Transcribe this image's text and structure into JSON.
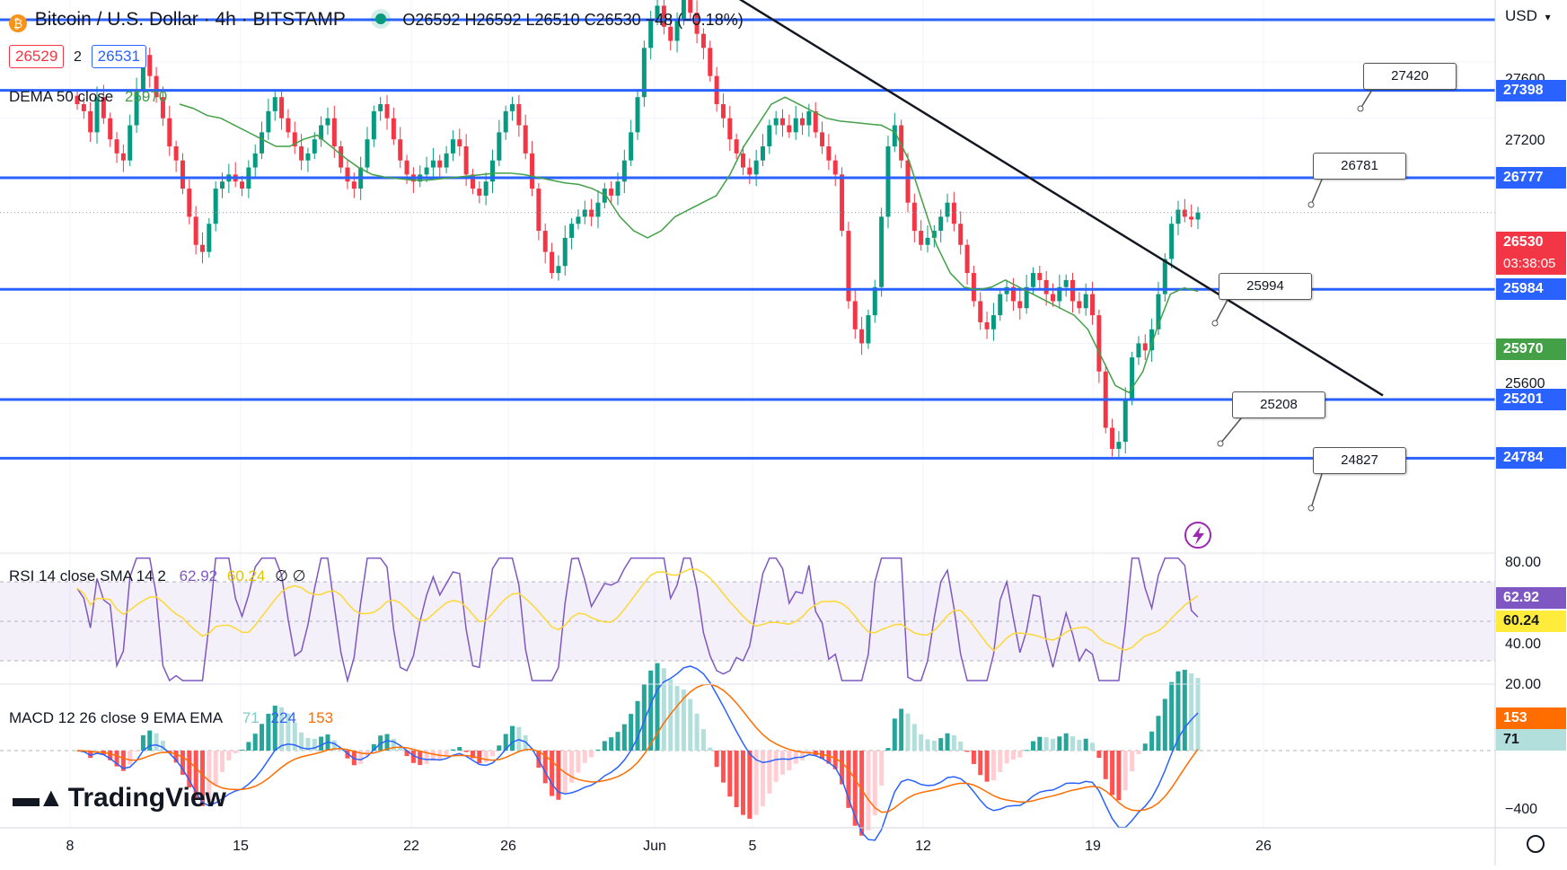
{
  "header": {
    "symbol_title": "Bitcoin / U.S. Dollar · 4h · BITSTAMP",
    "ohlc": "O26592 H26592 L26510 C26530 −48 (−0.18%)",
    "bid": "26529",
    "spread": "2",
    "ask": "26531",
    "currency": "USD"
  },
  "indicators": {
    "dema_label": "DEMA 50 close",
    "dema_value": "25970",
    "rsi_label": "RSI 14 close SMA 14 2",
    "rsi_value": "62.92",
    "rsi_sma_value": "60.24",
    "rsi_extra": "∅ ∅",
    "macd_label": "MACD 12 26 close 9 EMA EMA",
    "macd_hist": "71",
    "macd_line": "224",
    "macd_signal": "153"
  },
  "price_axis": {
    "ticks": [
      "27600",
      "27200",
      "25600"
    ],
    "current_price": "26530",
    "countdown": "03:38:05",
    "dema_tag": "25970"
  },
  "rsi_axis": {
    "ticks": [
      "80.00",
      "40.00",
      "20.00"
    ]
  },
  "macd_axis": {
    "ticks": [
      "−400"
    ]
  },
  "time_axis": [
    {
      "label": "8",
      "x": 78
    },
    {
      "label": "15",
      "x": 268
    },
    {
      "label": "22",
      "x": 458
    },
    {
      "label": "26",
      "x": 566
    },
    {
      "label": "Jun",
      "x": 729
    },
    {
      "label": "5",
      "x": 838
    },
    {
      "label": "12",
      "x": 1028
    },
    {
      "label": "19",
      "x": 1217
    },
    {
      "label": "26",
      "x": 1407
    }
  ],
  "levels": [
    {
      "price": 27398,
      "label": "27398"
    },
    {
      "price": 26777,
      "label": "26777"
    },
    {
      "price": 25984,
      "label": "25984"
    },
    {
      "price": 25201,
      "label": "25201"
    },
    {
      "price": 24784,
      "label": "24784"
    }
  ],
  "callouts": [
    {
      "label": "27420"
    },
    {
      "label": "26781"
    },
    {
      "label": "25994"
    },
    {
      "label": "25208"
    },
    {
      "label": "24827"
    }
  ],
  "logo": "TradingView",
  "colors": {
    "level_line": "#2962ff",
    "up": "#089981",
    "down": "#f23645",
    "dema": "#43a047",
    "rsi": "#7e57c2",
    "rsi_sma": "#fdd835",
    "macd": "#2962ff",
    "signal": "#ff6d00",
    "current": "#f23645"
  },
  "chart_data": {
    "type": "candlestick",
    "title": "Bitcoin / U.S. Dollar · 4h · BITSTAMP",
    "ylim": [
      24650,
      28200
    ],
    "horizontal_levels": [
      27398,
      26777,
      25984,
      25201,
      24784
    ],
    "trendline": [
      {
        "x": "2023-05-30",
        "y": 28100
      },
      {
        "x": "2023-06-24",
        "y": 25230
      }
    ],
    "closes": [
      27300,
      27250,
      27100,
      27350,
      27200,
      27050,
      26950,
      26900,
      27150,
      27400,
      27650,
      27500,
      27350,
      27200,
      27000,
      26900,
      26700,
      26500,
      26300,
      26250,
      26450,
      26700,
      26750,
      26800,
      26750,
      26700,
      26850,
      26950,
      27100,
      27250,
      27350,
      27200,
      27100,
      27000,
      26900,
      26950,
      27050,
      27150,
      27200,
      27000,
      26850,
      26750,
      26700,
      26850,
      27050,
      27250,
      27300,
      27200,
      27050,
      26900,
      26800,
      26750,
      26800,
      26850,
      26900,
      26850,
      26950,
      27050,
      27000,
      26800,
      26700,
      26650,
      26750,
      26900,
      27100,
      27250,
      27300,
      27150,
      26950,
      26700,
      26400,
      26250,
      26100,
      26150,
      26350,
      26450,
      26500,
      26550,
      26500,
      26600,
      26700,
      26650,
      26750,
      26900,
      27100,
      27350,
      27700,
      27900,
      28000,
      27850,
      27750,
      27900,
      28050,
      27950,
      27800,
      27700,
      27500,
      27300,
      27200,
      27050,
      26950,
      26850,
      26800,
      26900,
      27000,
      27150,
      27200,
      27150,
      27100,
      27200,
      27150,
      27250,
      27100,
      27000,
      26900,
      26800,
      26400,
      25900,
      25700,
      25600,
      25800,
      26000,
      26500,
      27000,
      27150,
      26900,
      26600,
      26400,
      26300,
      26350,
      26400,
      26500,
      26600,
      26450,
      26300,
      26100,
      25900,
      25750,
      25700,
      25800,
      25950,
      26000,
      25900,
      25850,
      26000,
      26100,
      26050,
      25950,
      25900,
      26000,
      26050,
      25900,
      25850,
      25950,
      25800,
      25400,
      25000,
      24850,
      24900,
      25200,
      25500,
      25600,
      25550,
      25700,
      25950,
      26200,
      26450,
      26550,
      26500,
      26480,
      26530
    ],
    "dema": [
      27300,
      27270,
      27220,
      27200,
      27150,
      27100,
      27050,
      27000,
      27000,
      27050,
      27080,
      27000,
      26920,
      26850,
      26800,
      26780,
      26770,
      26760,
      26760,
      26770,
      26780,
      26790,
      26800,
      26810,
      26810,
      26800,
      26780,
      26760,
      26740,
      26730,
      26700,
      26650,
      26500,
      26400,
      26350,
      26400,
      26500,
      26550,
      26600,
      26650,
      26800,
      27000,
      27150,
      27300,
      27350,
      27300,
      27250,
      27200,
      27180,
      27170,
      27160,
      27150,
      27100,
      26900,
      26600,
      26300,
      26100,
      26000,
      25980,
      26000,
      26050,
      26000,
      25950,
      25900,
      25850,
      25800,
      25700,
      25500,
      25300,
      25250,
      25400,
      25700,
      25950,
      25994,
      25970
    ]
  }
}
